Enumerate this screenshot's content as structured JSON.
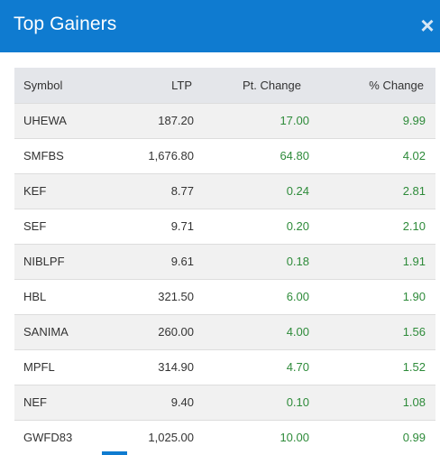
{
  "modal": {
    "title": "Top Gainers",
    "close_label": "×"
  },
  "table": {
    "headers": {
      "symbol": "Symbol",
      "ltp": "LTP",
      "pt_change": "Pt. Change",
      "pct_change": "% Change"
    },
    "rows": [
      {
        "symbol": "UHEWA",
        "ltp": "187.20",
        "pt_change": "17.00",
        "pct_change": "9.99"
      },
      {
        "symbol": "SMFBS",
        "ltp": "1,676.80",
        "pt_change": "64.80",
        "pct_change": "4.02"
      },
      {
        "symbol": "KEF",
        "ltp": "8.77",
        "pt_change": "0.24",
        "pct_change": "2.81"
      },
      {
        "symbol": "SEF",
        "ltp": "9.71",
        "pt_change": "0.20",
        "pct_change": "2.10"
      },
      {
        "symbol": "NIBLPF",
        "ltp": "9.61",
        "pt_change": "0.18",
        "pct_change": "1.91"
      },
      {
        "symbol": "HBL",
        "ltp": "321.50",
        "pt_change": "6.00",
        "pct_change": "1.90"
      },
      {
        "symbol": "SANIMA",
        "ltp": "260.00",
        "pt_change": "4.00",
        "pct_change": "1.56"
      },
      {
        "symbol": "MPFL",
        "ltp": "314.90",
        "pt_change": "4.70",
        "pct_change": "1.52"
      },
      {
        "symbol": "NEF",
        "ltp": "9.40",
        "pt_change": "0.10",
        "pct_change": "1.08"
      },
      {
        "symbol": "GWFD83",
        "ltp": "1,025.00",
        "pt_change": "10.00",
        "pct_change": "0.99"
      }
    ]
  },
  "colors": {
    "header_bg": "#0f7bd0",
    "gain": "#2e8b3a"
  }
}
